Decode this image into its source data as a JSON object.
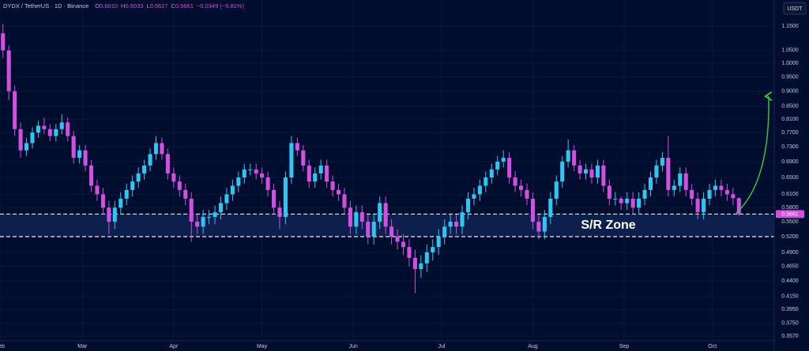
{
  "header": {
    "title": "DYDX / TetherUS · 1D · Binance",
    "fields": [
      {
        "key": "O",
        "value": "0.6010"
      },
      {
        "key": "H",
        "value": "0.6033"
      },
      {
        "key": "L",
        "value": "0.5627"
      },
      {
        "key": "C",
        "value": "0.5661"
      }
    ],
    "change": "−0.0349 (−5.81%)",
    "currency": "USDT"
  },
  "chart_data": {
    "type": "candlestick",
    "log_scale": true,
    "grid": true,
    "up_color": "#2ec6f2",
    "down_color": "#d24fe2",
    "x": [
      0,
      2,
      4,
      6,
      8,
      10,
      12,
      14,
      16,
      18,
      20,
      22,
      24,
      26,
      28,
      30,
      32,
      34,
      36,
      38,
      40,
      42,
      44,
      46,
      48,
      50,
      52,
      54,
      56,
      58,
      60,
      62,
      64,
      66,
      68,
      70,
      72,
      74,
      76,
      78,
      80,
      82,
      84,
      86,
      88,
      90,
      92,
      94,
      96,
      98,
      100,
      102,
      104,
      106,
      108,
      110,
      112,
      114,
      116,
      118,
      120,
      122,
      124,
      126,
      128,
      130,
      132,
      134,
      136,
      138,
      140,
      142,
      144,
      146,
      148,
      150,
      152,
      154,
      156,
      158,
      160,
      162,
      164,
      166,
      168,
      170,
      172,
      174,
      176,
      178,
      180,
      182,
      184,
      186,
      188,
      190,
      192,
      194,
      196,
      198,
      200,
      202,
      204,
      206,
      208,
      210,
      212,
      214,
      216,
      218,
      220,
      222,
      224,
      226,
      228,
      230,
      232,
      234,
      236,
      238,
      240,
      242,
      244,
      246,
      248,
      250
    ],
    "ohlc": [
      [
        1.12,
        1.16,
        1.02,
        1.05
      ],
      [
        1.05,
        1.07,
        0.87,
        0.9
      ],
      [
        0.9,
        0.92,
        0.76,
        0.78
      ],
      [
        0.78,
        0.8,
        0.7,
        0.72
      ],
      [
        0.72,
        0.755,
        0.705,
        0.74
      ],
      [
        0.74,
        0.785,
        0.725,
        0.77
      ],
      [
        0.77,
        0.805,
        0.755,
        0.79
      ],
      [
        0.79,
        0.815,
        0.765,
        0.78
      ],
      [
        0.78,
        0.795,
        0.745,
        0.76
      ],
      [
        0.76,
        0.795,
        0.745,
        0.78
      ],
      [
        0.78,
        0.825,
        0.765,
        0.8
      ],
      [
        0.8,
        0.815,
        0.745,
        0.76
      ],
      [
        0.76,
        0.775,
        0.685,
        0.7
      ],
      [
        0.7,
        0.735,
        0.685,
        0.72
      ],
      [
        0.72,
        0.735,
        0.665,
        0.68
      ],
      [
        0.68,
        0.695,
        0.615,
        0.63
      ],
      [
        0.63,
        0.645,
        0.595,
        0.61
      ],
      [
        0.61,
        0.625,
        0.565,
        0.58
      ],
      [
        0.58,
        0.595,
        0.525,
        0.55
      ],
      [
        0.55,
        0.595,
        0.535,
        0.58
      ],
      [
        0.58,
        0.615,
        0.565,
        0.6
      ],
      [
        0.6,
        0.635,
        0.585,
        0.62
      ],
      [
        0.62,
        0.655,
        0.605,
        0.64
      ],
      [
        0.64,
        0.675,
        0.625,
        0.66
      ],
      [
        0.66,
        0.695,
        0.645,
        0.68
      ],
      [
        0.68,
        0.725,
        0.665,
        0.71
      ],
      [
        0.71,
        0.76,
        0.695,
        0.74
      ],
      [
        0.74,
        0.755,
        0.695,
        0.71
      ],
      [
        0.71,
        0.725,
        0.645,
        0.66
      ],
      [
        0.66,
        0.675,
        0.625,
        0.64
      ],
      [
        0.64,
        0.655,
        0.605,
        0.62
      ],
      [
        0.62,
        0.635,
        0.585,
        0.6
      ],
      [
        0.6,
        0.615,
        0.51,
        0.55
      ],
      [
        0.55,
        0.565,
        0.525,
        0.54
      ],
      [
        0.54,
        0.575,
        0.525,
        0.56
      ],
      [
        0.56,
        0.575,
        0.545,
        0.56
      ],
      [
        0.56,
        0.585,
        0.545,
        0.57
      ],
      [
        0.57,
        0.605,
        0.555,
        0.59
      ],
      [
        0.59,
        0.625,
        0.575,
        0.61
      ],
      [
        0.61,
        0.645,
        0.595,
        0.63
      ],
      [
        0.63,
        0.665,
        0.615,
        0.65
      ],
      [
        0.65,
        0.685,
        0.635,
        0.67
      ],
      [
        0.67,
        0.685,
        0.655,
        0.67
      ],
      [
        0.67,
        0.685,
        0.645,
        0.66
      ],
      [
        0.66,
        0.675,
        0.635,
        0.65
      ],
      [
        0.65,
        0.665,
        0.605,
        0.62
      ],
      [
        0.62,
        0.635,
        0.565,
        0.58
      ],
      [
        0.58,
        0.595,
        0.535,
        0.56
      ],
      [
        0.56,
        0.665,
        0.545,
        0.65
      ],
      [
        0.65,
        0.76,
        0.635,
        0.74
      ],
      [
        0.74,
        0.755,
        0.705,
        0.72
      ],
      [
        0.72,
        0.735,
        0.665,
        0.68
      ],
      [
        0.68,
        0.695,
        0.625,
        0.64
      ],
      [
        0.64,
        0.675,
        0.625,
        0.66
      ],
      [
        0.66,
        0.695,
        0.645,
        0.68
      ],
      [
        0.68,
        0.695,
        0.625,
        0.64
      ],
      [
        0.64,
        0.655,
        0.605,
        0.62
      ],
      [
        0.62,
        0.635,
        0.595,
        0.61
      ],
      [
        0.61,
        0.625,
        0.565,
        0.58
      ],
      [
        0.58,
        0.595,
        0.525,
        0.54
      ],
      [
        0.54,
        0.585,
        0.525,
        0.57
      ],
      [
        0.57,
        0.585,
        0.535,
        0.55
      ],
      [
        0.55,
        0.565,
        0.505,
        0.52
      ],
      [
        0.52,
        0.565,
        0.505,
        0.55
      ],
      [
        0.55,
        0.605,
        0.535,
        0.59
      ],
      [
        0.59,
        0.605,
        0.525,
        0.54
      ],
      [
        0.54,
        0.555,
        0.505,
        0.52
      ],
      [
        0.52,
        0.535,
        0.495,
        0.51
      ],
      [
        0.51,
        0.525,
        0.485,
        0.5
      ],
      [
        0.5,
        0.515,
        0.465,
        0.48
      ],
      [
        0.48,
        0.495,
        0.42,
        0.46
      ],
      [
        0.46,
        0.485,
        0.445,
        0.47
      ],
      [
        0.47,
        0.505,
        0.455,
        0.49
      ],
      [
        0.49,
        0.515,
        0.475,
        0.5
      ],
      [
        0.5,
        0.535,
        0.485,
        0.52
      ],
      [
        0.52,
        0.555,
        0.505,
        0.54
      ],
      [
        0.54,
        0.565,
        0.525,
        0.55
      ],
      [
        0.55,
        0.565,
        0.525,
        0.54
      ],
      [
        0.54,
        0.585,
        0.525,
        0.57
      ],
      [
        0.57,
        0.615,
        0.555,
        0.6
      ],
      [
        0.6,
        0.625,
        0.585,
        0.61
      ],
      [
        0.61,
        0.645,
        0.595,
        0.63
      ],
      [
        0.63,
        0.665,
        0.615,
        0.65
      ],
      [
        0.65,
        0.685,
        0.635,
        0.67
      ],
      [
        0.67,
        0.705,
        0.655,
        0.69
      ],
      [
        0.69,
        0.72,
        0.675,
        0.7
      ],
      [
        0.7,
        0.715,
        0.635,
        0.65
      ],
      [
        0.65,
        0.665,
        0.615,
        0.63
      ],
      [
        0.63,
        0.645,
        0.605,
        0.62
      ],
      [
        0.62,
        0.635,
        0.585,
        0.6
      ],
      [
        0.6,
        0.615,
        0.535,
        0.55
      ],
      [
        0.55,
        0.565,
        0.515,
        0.53
      ],
      [
        0.53,
        0.575,
        0.515,
        0.56
      ],
      [
        0.56,
        0.615,
        0.545,
        0.6
      ],
      [
        0.6,
        0.655,
        0.585,
        0.64
      ],
      [
        0.64,
        0.705,
        0.625,
        0.69
      ],
      [
        0.69,
        0.75,
        0.675,
        0.72
      ],
      [
        0.72,
        0.735,
        0.665,
        0.68
      ],
      [
        0.68,
        0.695,
        0.645,
        0.66
      ],
      [
        0.66,
        0.685,
        0.645,
        0.67
      ],
      [
        0.67,
        0.685,
        0.635,
        0.65
      ],
      [
        0.65,
        0.695,
        0.635,
        0.68
      ],
      [
        0.68,
        0.695,
        0.615,
        0.63
      ],
      [
        0.63,
        0.645,
        0.585,
        0.6
      ],
      [
        0.6,
        0.615,
        0.585,
        0.6
      ],
      [
        0.6,
        0.605,
        0.575,
        0.59
      ],
      [
        0.59,
        0.615,
        0.575,
        0.6
      ],
      [
        0.6,
        0.615,
        0.565,
        0.58
      ],
      [
        0.58,
        0.615,
        0.565,
        0.6
      ],
      [
        0.6,
        0.635,
        0.585,
        0.62
      ],
      [
        0.62,
        0.665,
        0.605,
        0.65
      ],
      [
        0.65,
        0.695,
        0.635,
        0.68
      ],
      [
        0.68,
        0.715,
        0.665,
        0.7
      ],
      [
        0.7,
        0.76,
        0.605,
        0.62
      ],
      [
        0.62,
        0.645,
        0.605,
        0.63
      ],
      [
        0.63,
        0.675,
        0.615,
        0.66
      ],
      [
        0.66,
        0.675,
        0.605,
        0.62
      ],
      [
        0.62,
        0.635,
        0.585,
        0.6
      ],
      [
        0.6,
        0.615,
        0.555,
        0.57
      ],
      [
        0.57,
        0.615,
        0.555,
        0.6
      ],
      [
        0.6,
        0.635,
        0.585,
        0.62
      ],
      [
        0.62,
        0.645,
        0.605,
        0.63
      ],
      [
        0.63,
        0.645,
        0.605,
        0.62
      ],
      [
        0.62,
        0.635,
        0.595,
        0.61
      ],
      [
        0.61,
        0.625,
        0.585,
        0.601
      ],
      [
        0.601,
        0.6033,
        0.5627,
        0.5661
      ]
    ],
    "xlim": [
      -1,
      262
    ],
    "xticks": [
      {
        "value": -1,
        "label": "Feb"
      },
      {
        "value": 27,
        "label": "Mar"
      },
      {
        "value": 58,
        "label": "Apr"
      },
      {
        "value": 88,
        "label": "May"
      },
      {
        "value": 119,
        "label": "Jun"
      },
      {
        "value": 149,
        "label": "Jul"
      },
      {
        "value": 180,
        "label": "Aug"
      },
      {
        "value": 211,
        "label": "Sep"
      },
      {
        "value": 241,
        "label": "Oct"
      }
    ],
    "ylim": [
      0.351,
      1.27
    ],
    "yticks": [
      {
        "value": 1.15,
        "label": "1.1500"
      },
      {
        "value": 1.05,
        "label": "1.0500"
      },
      {
        "value": 1,
        "label": "1.0000"
      },
      {
        "value": 0.95,
        "label": "0.9500"
      },
      {
        "value": 0.9,
        "label": "0.9000"
      },
      {
        "value": 0.85,
        "label": "0.8500"
      },
      {
        "value": 0.81,
        "label": "0.8100"
      },
      {
        "value": 0.77,
        "label": "0.7700"
      },
      {
        "value": 0.73,
        "label": "0.7300"
      },
      {
        "value": 0.69,
        "label": "0.6900"
      },
      {
        "value": 0.65,
        "label": "0.6500"
      },
      {
        "value": 0.61,
        "label": "0.6100"
      },
      {
        "value": 0.58,
        "label": "0.5800"
      },
      {
        "value": 0.55,
        "label": "0.5500"
      },
      {
        "value": 0.52,
        "label": "0.5200"
      },
      {
        "value": 0.49,
        "label": "0.4900"
      },
      {
        "value": 0.465,
        "label": "0.4650"
      },
      {
        "value": 0.44,
        "label": "0.4400"
      },
      {
        "value": 0.415,
        "label": "0.4150"
      },
      {
        "value": 0.395,
        "label": "0.3950"
      },
      {
        "value": 0.375,
        "label": "0.3750"
      },
      {
        "value": 0.357,
        "label": "0.3570"
      }
    ],
    "last_price": {
      "value": 0.5661,
      "label": "0.5661"
    },
    "sr_zone": {
      "label": "S/R Zone",
      "top": 0.5661,
      "bottom": 0.52
    }
  }
}
